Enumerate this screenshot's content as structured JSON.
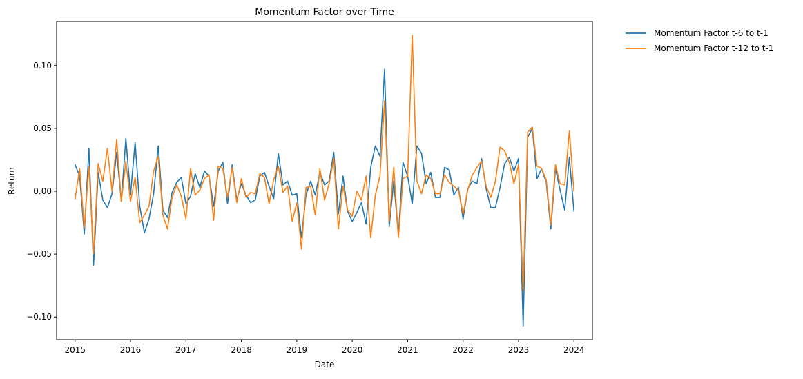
{
  "chart_data": {
    "type": "line",
    "title": "Momentum Factor over Time",
    "xlabel": "Date",
    "ylabel": "Return",
    "x_start": "2015-01",
    "x_step": "1 month",
    "xlim": [
      "2014-09",
      "2024-05"
    ],
    "ylim": [
      -0.118,
      0.135
    ],
    "x_ticks": [
      "2015",
      "2016",
      "2017",
      "2018",
      "2019",
      "2020",
      "2021",
      "2022",
      "2023",
      "2024"
    ],
    "y_ticks": [
      -0.1,
      -0.05,
      0.0,
      0.05,
      0.1
    ],
    "y_tick_labels": [
      "−0.10",
      "−0.05",
      "0.00",
      "0.05",
      "0.10"
    ],
    "grid": false,
    "legend_position": "outside-top-right",
    "series": [
      {
        "name": "Momentum Factor t-6 to t-1",
        "color": "#1f77b4",
        "values": [
          0.021,
          0.012,
          -0.034,
          0.034,
          -0.059,
          0.015,
          -0.007,
          -0.013,
          -0.002,
          0.031,
          -0.008,
          0.042,
          -0.003,
          0.039,
          -0.012,
          -0.033,
          -0.022,
          -0.002,
          0.036,
          -0.015,
          -0.021,
          -0.001,
          0.007,
          0.011,
          -0.01,
          -0.004,
          0.014,
          0.003,
          0.016,
          0.012,
          -0.012,
          0.016,
          0.023,
          -0.01,
          0.021,
          -0.007,
          0.006,
          -0.003,
          -0.009,
          -0.007,
          0.012,
          0.015,
          0.004,
          -0.006,
          0.03,
          0.005,
          0.008,
          -0.003,
          -0.002,
          -0.037,
          -0.003,
          0.008,
          -0.003,
          0.015,
          0.005,
          0.008,
          0.031,
          -0.018,
          0.012,
          -0.016,
          -0.024,
          -0.017,
          -0.009,
          -0.026,
          0.019,
          0.036,
          0.028,
          0.097,
          -0.028,
          0.008,
          -0.035,
          0.023,
          0.012,
          -0.01,
          0.036,
          0.03,
          0.006,
          0.015,
          -0.005,
          -0.005,
          0.019,
          0.017,
          -0.003,
          0.003,
          -0.022,
          0.002,
          0.008,
          0.006,
          0.026,
          0.002,
          -0.013,
          -0.013,
          0.003,
          0.022,
          0.027,
          0.016,
          0.026,
          -0.107,
          0.043,
          0.05,
          0.01,
          0.018,
          0.007,
          -0.03,
          0.018,
          0.001,
          -0.015,
          0.027,
          -0.016
        ]
      },
      {
        "name": "Momentum Factor t-12 to t-1",
        "color": "#ff7f0e",
        "values": [
          -0.006,
          0.018,
          -0.029,
          0.02,
          -0.05,
          0.022,
          0.008,
          0.034,
          0.0,
          0.041,
          -0.008,
          0.024,
          -0.008,
          0.011,
          -0.025,
          -0.019,
          -0.012,
          0.016,
          0.028,
          -0.019,
          -0.03,
          -0.005,
          0.005,
          -0.004,
          -0.022,
          0.018,
          -0.003,
          0.001,
          0.01,
          0.013,
          -0.023,
          0.02,
          0.018,
          -0.005,
          0.019,
          -0.009,
          0.01,
          -0.005,
          -0.001,
          -0.002,
          0.014,
          0.011,
          -0.01,
          0.009,
          0.02,
          -0.001,
          0.004,
          -0.024,
          -0.009,
          -0.046,
          0.003,
          0.004,
          -0.019,
          0.018,
          -0.007,
          0.006,
          0.026,
          -0.03,
          0.004,
          -0.015,
          -0.02,
          0.0,
          -0.007,
          0.012,
          -0.037,
          -0.003,
          0.012,
          0.072,
          -0.024,
          0.019,
          -0.037,
          0.01,
          0.012,
          0.124,
          0.008,
          -0.002,
          0.013,
          0.01,
          -0.002,
          -0.002,
          0.013,
          0.007,
          0.004,
          0.001,
          -0.018,
          0.001,
          0.013,
          0.019,
          0.024,
          0.004,
          -0.005,
          0.008,
          0.035,
          0.032,
          0.023,
          0.006,
          0.021,
          -0.079,
          0.047,
          0.051,
          0.02,
          0.018,
          0.009,
          -0.027,
          0.021,
          0.006,
          0.005,
          0.048,
          0.0
        ]
      }
    ]
  }
}
